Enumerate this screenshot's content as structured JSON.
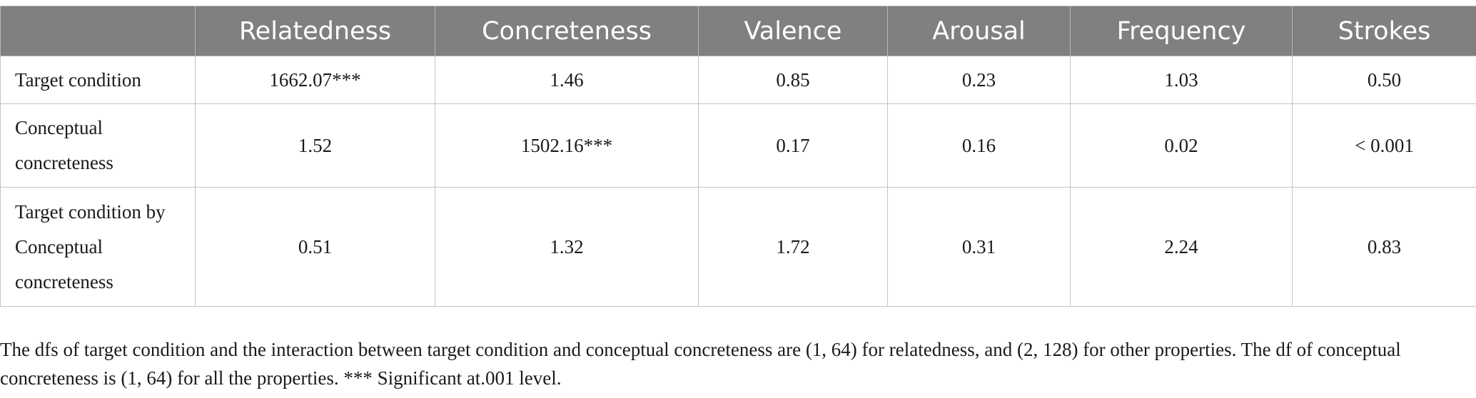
{
  "table": {
    "columns": [
      "",
      "Relatedness",
      "Concreteness",
      "Valence",
      "Arousal",
      "Frequency",
      "Strokes"
    ],
    "rows": [
      {
        "label_lines": [
          "Target condition"
        ],
        "values": [
          "1662.07***",
          "1.46",
          "0.85",
          "0.23",
          "1.03",
          "0.50"
        ]
      },
      {
        "label_lines": [
          "Conceptual",
          "concreteness"
        ],
        "values": [
          "1.52",
          "1502.16***",
          "0.17",
          "0.16",
          "0.02",
          "< 0.001"
        ]
      },
      {
        "label_lines": [
          "Target condition by",
          "Conceptual",
          "concreteness"
        ],
        "values": [
          "0.51",
          "1.32",
          "1.72",
          "0.31",
          "2.24",
          "0.83"
        ]
      }
    ]
  },
  "footnote": {
    "line1": "The dfs of target condition and the interaction between target condition and conceptual concreteness are (1, 64) for relatedness, and (2, 128) for other properties. The df of conceptual",
    "line2": "concreteness is (1, 64) for all the properties. *** Significant at.001 level."
  }
}
